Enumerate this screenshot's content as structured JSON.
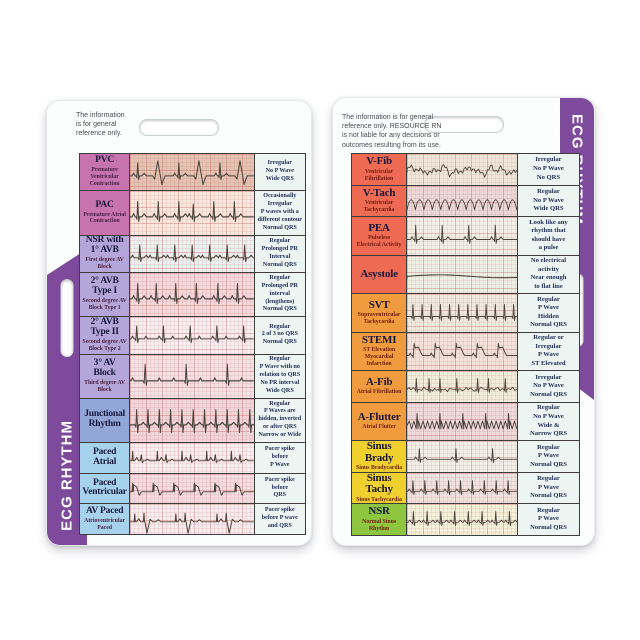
{
  "brand": {
    "banner_text": "ECG RHYTHM",
    "banner_color": "#7d4a9c"
  },
  "cards": {
    "left": {
      "disclaimer": "The information\nis for general\nreference only.",
      "sub_color": "#4a2144",
      "rows": [
        {
          "title": "PVC",
          "sub": "Premature\nVentricular\nContraction",
          "desc": "Irregular\nNo P Wave\nWide QRS",
          "color": "#c673ae",
          "strip_bg": "#e3c4b4",
          "pattern": "pvc"
        },
        {
          "title": "PAC",
          "sub": "Premature Atrial\nContraction",
          "desc": "Occasionally\nIrregular\nP waves with a\ndifferent contour\nNormal QRS",
          "color": "#c673ae",
          "strip_bg": "#f6e8de",
          "pattern": "pac"
        },
        {
          "title": "NSR with\n1° AVB",
          "sub": "First degree AV\nBlock",
          "desc": "Regular\nProlonged PR\nInterval\nNormal QRS",
          "color": "#b4a6d8",
          "strip_bg": "#e9f2f2",
          "pattern": "avb1"
        },
        {
          "title": "2° AVB\nType I",
          "sub": "Second degree AV\nBlock Type 1",
          "desc": "Regular\nProlonged PR\ninterval\n(lengthens)\nNormal QRS",
          "color": "#b4a6d8",
          "strip_bg": "#f2d9dc",
          "pattern": "wenck"
        },
        {
          "title": "2° AVB\nType II",
          "sub": "Second degree AV\nBlock Type 2",
          "desc": "Regular\n2 of 3 no QRS\nNormal QRS",
          "color": "#b4a6d8",
          "strip_bg": "#f6eef0",
          "pattern": "mobitz2"
        },
        {
          "title": "3° AV\nBlock",
          "sub": "Third degree AV\nBlock",
          "desc": "Regular\nP Wave with no\nrelation to QRS\nNo PR interval\nWide QRS",
          "color": "#b4a6d8",
          "strip_bg": "#f3e2e4",
          "pattern": "chb"
        },
        {
          "title": "Junctional\nRhythm",
          "sub": "",
          "desc": "Regular\nP Waves are\nhidden, inverted\nor after QRS\nNarrow or Wide",
          "color": "#92a6d8",
          "strip_bg": "#efd6da",
          "pattern": "junctional"
        },
        {
          "title": "Paced\nAtrial",
          "sub": "",
          "desc": "Pacer spike\nbefore\nP Wave",
          "color": "#a7d2ee",
          "strip_bg": "#f6eef0",
          "pattern": "paced-a"
        },
        {
          "title": "Paced\nVentricular",
          "sub": "",
          "desc": "Pacer spike\nbefore\nQRS",
          "color": "#a7d2ee",
          "strip_bg": "#f2dde2",
          "pattern": "paced-v"
        },
        {
          "title": "AV Paced",
          "sub": "Atrioventricular\nPaced",
          "desc": "Pacer spike\nbefore P wave\nand QRS",
          "color": "#a7d2ee",
          "strip_bg": "#f4ecee",
          "pattern": "paced-av"
        }
      ]
    },
    "right": {
      "disclaimer": "The information is for general\nreference only. RESOURCE RN\nis not liable for any decisions or\noutcomes resulting from its use.",
      "sub_color": "#6e1d10",
      "rows": [
        {
          "title": "V-Fib",
          "sub": "Ventricular\nFibrillation",
          "desc": "Irregular\nNo P Wave\nNo QRS",
          "color": "#ee6a52",
          "strip_bg": "#efe6da",
          "pattern": "vfib"
        },
        {
          "title": "V-Tach",
          "sub": "Ventricular\nTachycardia",
          "desc": "Regular\nNo P Wave\nWide QRS",
          "color": "#ee6a52",
          "strip_bg": "#ecd8d6",
          "pattern": "vtach"
        },
        {
          "title": "PEA",
          "sub": "Pulseless\nElectrical Activity",
          "desc": "Look like any\nrhythm that\nshould have\na pulse",
          "color": "#ee6a52",
          "strip_bg": "#f3eee6",
          "pattern": "pea"
        },
        {
          "title": "Asystole",
          "sub": "",
          "desc": "No electrical\nactivity\nNear enough\nto flat line",
          "color": "#ee6a52",
          "strip_bg": "#edeee4",
          "pattern": "asystole"
        },
        {
          "title": "SVT",
          "sub": "Supraventricular\nTachycardia",
          "desc": "Regular\nP Wave\nHidden\nNormal QRS",
          "color": "#f09c3e",
          "strip_bg": "#f0eade",
          "pattern": "svt"
        },
        {
          "title": "STEMI",
          "sub": "ST Elevation\nMyocardial\nInfarction",
          "desc": "Regular or\nIrregular\nP Wave\nST Elevated",
          "color": "#f09c3e",
          "strip_bg": "#f2e2da",
          "pattern": "stemi"
        },
        {
          "title": "A-Fib",
          "sub": "Atrial Fibrillation",
          "desc": "Irregular\nNo P Wave\nNormal QRS",
          "color": "#f09c3e",
          "strip_bg": "#f1ecdb",
          "pattern": "afib"
        },
        {
          "title": "A-Flutter",
          "sub": "Atrial Flutter",
          "desc": "Regular\nNo P Wave\nWide &\nNarrow QRS",
          "color": "#f09c3e",
          "strip_bg": "#eedada",
          "pattern": "aflutter"
        },
        {
          "title": "Sinus\nBrady",
          "sub": "Sinus Bradycardia",
          "desc": "Regular\nP Wave\nNormal QRS",
          "color": "#f0d02f",
          "strip_bg": "#f2efe6",
          "pattern": "brady"
        },
        {
          "title": "Sinus\nTachy",
          "sub": "Sinus Tachycardia",
          "desc": "Regular\nP Wave\nNormal QRS",
          "color": "#f0d02f",
          "strip_bg": "#f0e2de",
          "pattern": "tachy"
        },
        {
          "title": "NSR",
          "sub": "Normal Sinus\nRhythm",
          "desc": "Regular\nP Wave\nNormal QRS",
          "color": "#8ec63f",
          "strip_bg": "#f4f0da",
          "pattern": "nsr"
        }
      ]
    }
  }
}
